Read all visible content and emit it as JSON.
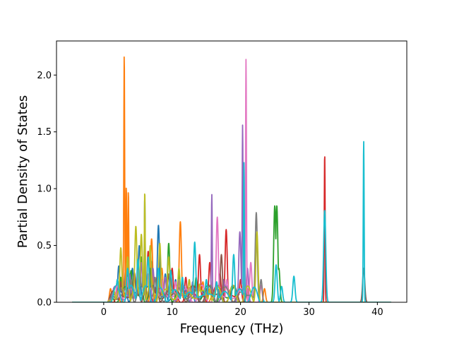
{
  "chart_data": {
    "type": "line",
    "title": "",
    "xlabel": "Frequency (THz)",
    "ylabel": "Partial Density of States",
    "xlim": [
      -6.9,
      44.3
    ],
    "ylim": [
      0.0,
      2.3
    ],
    "x_ticks": [
      0,
      10,
      20,
      30,
      40
    ],
    "x_tick_labels": [
      "0",
      "10",
      "20",
      "30",
      "40"
    ],
    "y_ticks": [
      0.0,
      0.5,
      1.0,
      1.5,
      2.0
    ],
    "y_tick_labels": [
      "0.0",
      "0.5",
      "1.0",
      "1.5",
      "2.0"
    ],
    "grid": false,
    "legend": "none",
    "x_range_plotted": [
      -4.6,
      42.0
    ],
    "series": [
      {
        "color": "#1f77b4",
        "peaks": [
          [
            2.2,
            0.32
          ],
          [
            3.2,
            0.28
          ],
          [
            4.2,
            0.3
          ],
          [
            5.2,
            0.5
          ],
          [
            6.0,
            0.92
          ],
          [
            7.0,
            0.36
          ],
          [
            8.0,
            0.68
          ],
          [
            9.0,
            0.25
          ],
          [
            10.5,
            0.2
          ],
          [
            11.8,
            0.14
          ],
          [
            13.0,
            0.1
          ],
          [
            14.5,
            0.08
          ]
        ]
      },
      {
        "color": "#ff7f0e",
        "peaks": [
          [
            1.0,
            0.12
          ],
          [
            2.0,
            0.2
          ],
          [
            3.0,
            2.19
          ],
          [
            3.3,
            1.02
          ],
          [
            3.6,
            0.98
          ],
          [
            4.5,
            0.25
          ],
          [
            5.5,
            0.35
          ],
          [
            7.0,
            0.56
          ],
          [
            8.5,
            0.3
          ],
          [
            10.2,
            0.15
          ],
          [
            11.2,
            0.71
          ],
          [
            12.5,
            0.12
          ],
          [
            14.5,
            0.18
          ],
          [
            16.5,
            0.15
          ],
          [
            18.5,
            0.08
          ],
          [
            21.0,
            0.12
          ],
          [
            23.5,
            0.12
          ]
        ]
      },
      {
        "color": "#2ca02c",
        "peaks": [
          [
            2.5,
            0.22
          ],
          [
            4.0,
            0.28
          ],
          [
            5.5,
            0.4
          ],
          [
            6.8,
            0.3
          ],
          [
            9.5,
            0.52
          ],
          [
            11.0,
            0.25
          ],
          [
            13.5,
            0.22
          ],
          [
            15.5,
            0.15
          ],
          [
            17.0,
            0.12
          ],
          [
            25.0,
            0.85
          ],
          [
            25.3,
            0.85
          ],
          [
            25.6,
            0.3
          ]
        ]
      },
      {
        "color": "#d62728",
        "peaks": [
          [
            2.0,
            0.15
          ],
          [
            3.5,
            0.28
          ],
          [
            5.0,
            0.3
          ],
          [
            6.5,
            0.45
          ],
          [
            8.0,
            0.25
          ],
          [
            10.0,
            0.3
          ],
          [
            12.0,
            0.22
          ],
          [
            14.0,
            0.42
          ],
          [
            15.5,
            0.35
          ],
          [
            17.0,
            0.25
          ],
          [
            17.9,
            0.64
          ],
          [
            20.0,
            0.2
          ],
          [
            32.3,
            1.31
          ]
        ]
      },
      {
        "color": "#9467bd",
        "peaks": [
          [
            2.0,
            0.2
          ],
          [
            3.8,
            0.25
          ],
          [
            5.5,
            0.35
          ],
          [
            7.2,
            0.3
          ],
          [
            9.0,
            0.22
          ],
          [
            11.0,
            0.2
          ],
          [
            13.0,
            0.18
          ],
          [
            15.8,
            0.95
          ],
          [
            17.5,
            0.2
          ],
          [
            19.9,
            0.62
          ],
          [
            20.3,
            1.56
          ],
          [
            21.0,
            0.3
          ]
        ]
      },
      {
        "color": "#8c564b",
        "peaks": [
          [
            2.5,
            0.18
          ],
          [
            4.5,
            0.26
          ],
          [
            6.0,
            0.32
          ],
          [
            7.8,
            0.22
          ],
          [
            9.5,
            0.25
          ],
          [
            11.5,
            0.18
          ],
          [
            13.5,
            0.14
          ],
          [
            15.0,
            0.12
          ],
          [
            17.2,
            0.42
          ],
          [
            38.0,
            0.3
          ]
        ]
      },
      {
        "color": "#e377c2",
        "peaks": [
          [
            2.0,
            0.16
          ],
          [
            3.5,
            0.22
          ],
          [
            5.0,
            0.28
          ],
          [
            6.5,
            0.25
          ],
          [
            8.5,
            0.2
          ],
          [
            10.5,
            0.18
          ],
          [
            12.5,
            0.12
          ],
          [
            14.5,
            0.15
          ],
          [
            16.6,
            0.75
          ],
          [
            18.0,
            0.2
          ],
          [
            20.8,
            2.14
          ],
          [
            21.5,
            0.35
          ],
          [
            23.0,
            0.15
          ]
        ]
      },
      {
        "color": "#7f7f7f",
        "peaks": [
          [
            2.2,
            0.14
          ],
          [
            4.0,
            0.2
          ],
          [
            5.8,
            0.26
          ],
          [
            7.5,
            0.22
          ],
          [
            9.3,
            0.18
          ],
          [
            11.5,
            0.15
          ],
          [
            13.2,
            0.12
          ],
          [
            15.2,
            0.1
          ],
          [
            16.8,
            0.1
          ],
          [
            22.3,
            0.79
          ],
          [
            23.0,
            0.2
          ]
        ]
      },
      {
        "color": "#bcbd22",
        "peaks": [
          [
            1.5,
            0.1
          ],
          [
            2.5,
            0.48
          ],
          [
            3.5,
            0.4
          ],
          [
            4.7,
            0.67
          ],
          [
            5.5,
            0.6
          ],
          [
            6.0,
            0.98
          ],
          [
            6.8,
            0.5
          ],
          [
            8.2,
            0.52
          ],
          [
            9.5,
            0.4
          ],
          [
            11.0,
            0.3
          ],
          [
            12.5,
            0.2
          ],
          [
            14.0,
            0.16
          ],
          [
            15.5,
            0.12
          ],
          [
            22.4,
            0.62
          ]
        ]
      },
      {
        "color": "#17becf",
        "peaks": [
          [
            2.0,
            0.2
          ],
          [
            3.5,
            0.3
          ],
          [
            5.0,
            0.38
          ],
          [
            6.5,
            0.4
          ],
          [
            8.0,
            0.3
          ],
          [
            9.8,
            0.28
          ],
          [
            11.5,
            0.22
          ],
          [
            13.3,
            0.53
          ],
          [
            15.0,
            0.2
          ],
          [
            16.5,
            0.18
          ],
          [
            19.0,
            0.42
          ],
          [
            20.5,
            1.23
          ],
          [
            25.2,
            0.33
          ],
          [
            26.0,
            0.14
          ],
          [
            27.8,
            0.23
          ],
          [
            32.3,
            0.81
          ],
          [
            38.0,
            1.42
          ]
        ]
      }
    ]
  }
}
